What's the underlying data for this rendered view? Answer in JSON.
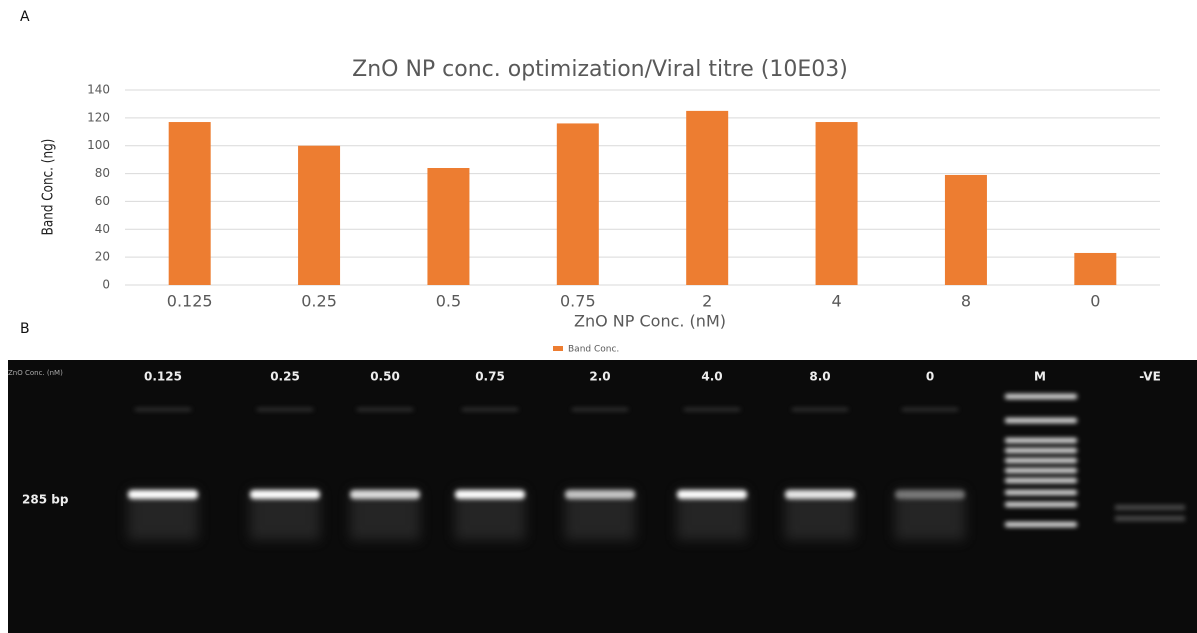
{
  "panel_labels": [
    "A",
    "B"
  ],
  "chart_data": {
    "type": "bar",
    "title": "ZnO NP conc. optimization/Viral titre (10E03)",
    "x_label": "ZnO NP Conc. (nM)",
    "y_label": "Band Conc. (ng)",
    "categories": [
      "0.125",
      "0.25",
      "0.5",
      "0.75",
      "2",
      "4",
      "8",
      "0"
    ],
    "series": [
      {
        "name": "Band Conc.",
        "color": "#ed7d31",
        "values": [
          117,
          100,
          84,
          116,
          125,
          117,
          79,
          23
        ]
      }
    ],
    "ylim": [
      0,
      140
    ],
    "yticks": [
      0,
      20,
      40,
      60,
      80,
      100,
      120,
      140
    ],
    "grid": true,
    "legend": "bottom"
  },
  "gel": {
    "row_label": "ZnO Conc. (nM)",
    "band_label": "285 bp",
    "lanes": [
      "0.125",
      "0.25",
      "0.50",
      "0.75",
      "2.0",
      "4.0",
      "8.0",
      "0",
      "M",
      "-VE"
    ]
  }
}
